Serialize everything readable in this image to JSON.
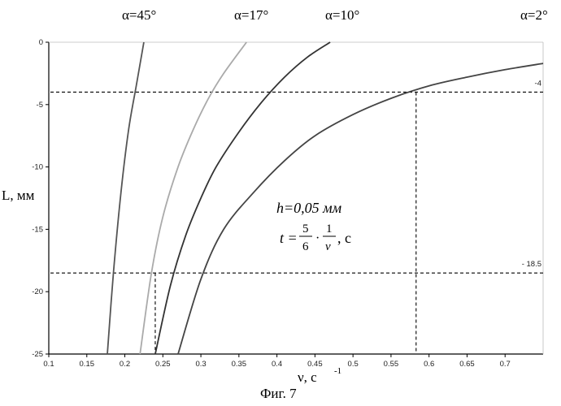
{
  "figure_caption": "Фиг. 7",
  "chart_data": {
    "type": "line",
    "xlabel": "ν, c",
    "xlabel_exp": "-1",
    "ylabel": "L, мм",
    "xlim": [
      0.1,
      0.75
    ],
    "ylim": [
      -25,
      0
    ],
    "x_ticks": [
      0.1,
      0.15,
      0.2,
      0.25,
      0.3,
      0.35,
      0.4,
      0.45,
      0.5,
      0.55,
      0.6,
      0.65,
      0.7
    ],
    "x_tick_labels": [
      "0.1",
      "0.15",
      "0.2",
      "0.25",
      "0.3",
      "0.35",
      "0.4",
      "0.45",
      "0.5",
      "0.55",
      "0.6",
      "0.65",
      "0.7"
    ],
    "y_ticks": [
      0,
      -5,
      -10,
      -15,
      -20,
      -25
    ],
    "y_tick_labels": [
      "0",
      "-5",
      "-10",
      "-15",
      "-20",
      "-25"
    ],
    "grid": false,
    "series": [
      {
        "name": "α=45°",
        "color": "#555555",
        "x": [
          0.177,
          0.185,
          0.195,
          0.205,
          0.215,
          0.225
        ],
        "y": [
          -25,
          -18.5,
          -12,
          -7,
          -3.5,
          0
        ]
      },
      {
        "name": "α=17°",
        "color": "#aaaaaa",
        "x": [
          0.22,
          0.235,
          0.25,
          0.27,
          0.29,
          0.31,
          0.33,
          0.36
        ],
        "y": [
          -25,
          -18.5,
          -14,
          -10,
          -7,
          -4.5,
          -2.5,
          0
        ]
      },
      {
        "name": "α=10°",
        "color": "#333333",
        "x": [
          0.24,
          0.26,
          0.28,
          0.3,
          0.32,
          0.35,
          0.38,
          0.41,
          0.44,
          0.47
        ],
        "y": [
          -25,
          -19.5,
          -15.5,
          -12.5,
          -10,
          -7.2,
          -4.8,
          -2.8,
          -1.2,
          0
        ]
      },
      {
        "name": "α=2°",
        "color": "#444444",
        "x": [
          0.27,
          0.3,
          0.33,
          0.37,
          0.41,
          0.45,
          0.5,
          0.55,
          0.6,
          0.65,
          0.7,
          0.75
        ],
        "y": [
          -25,
          -19,
          -15,
          -12,
          -9.5,
          -7.5,
          -5.8,
          -4.5,
          -3.5,
          -2.8,
          -2.2,
          -1.7
        ]
      }
    ],
    "reference_lines": [
      {
        "y": -4,
        "label": "-4"
      },
      {
        "y": -18.5,
        "label": "- 18.5"
      }
    ],
    "drop_lines": [
      {
        "x": 0.24,
        "y": -18.5
      },
      {
        "x": 0.583,
        "y": -4
      }
    ],
    "annotation": {
      "line1": "h=0,05 мм",
      "line2_prefix": "t =",
      "frac1_num": "5",
      "frac1_den": "6",
      "dot": "·",
      "frac2_num": "1",
      "frac2_den": "ν",
      "suffix": ", c"
    }
  }
}
